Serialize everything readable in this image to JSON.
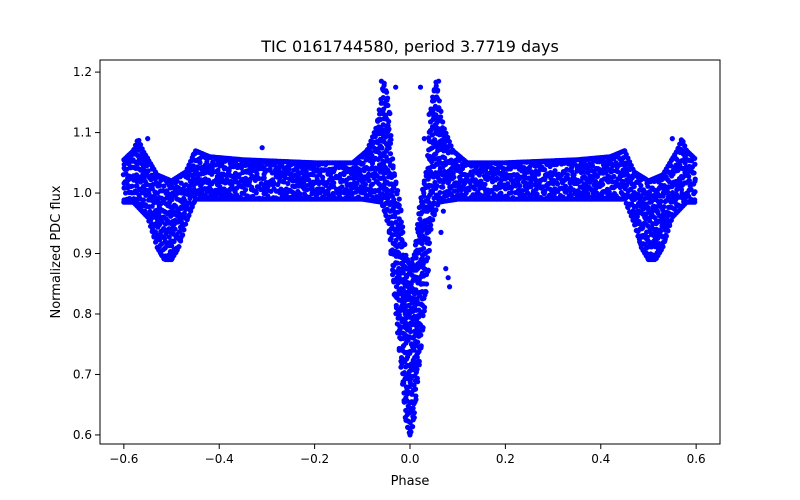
{
  "chart_data": {
    "type": "scatter",
    "title": "TIC 0161744580, period 3.7719 days",
    "xlabel": "Phase",
    "ylabel": "Normalized PDC flux",
    "xlim": [
      -0.65,
      0.65
    ],
    "ylim": [
      0.585,
      1.22
    ],
    "x_ticks": [
      -0.6,
      -0.4,
      -0.2,
      0.0,
      0.2,
      0.4,
      0.6
    ],
    "x_tick_labels": [
      "−0.6",
      "−0.4",
      "−0.2",
      "0.0",
      "0.2",
      "0.4",
      "0.6"
    ],
    "y_ticks": [
      0.6,
      0.7,
      0.8,
      0.9,
      1.0,
      1.1,
      1.2
    ],
    "y_tick_labels": [
      "0.6",
      "0.7",
      "0.8",
      "0.9",
      "1.0",
      "1.1",
      "1.2"
    ],
    "grid": false,
    "marker_color": "#0000ff",
    "series": [
      {
        "band_lower": [
          [
            -0.6,
            0.985
          ],
          [
            -0.58,
            0.985
          ],
          [
            -0.55,
            0.96
          ],
          [
            -0.53,
            0.91
          ],
          [
            -0.515,
            0.89
          ],
          [
            -0.5,
            0.89
          ],
          [
            -0.485,
            0.91
          ],
          [
            -0.47,
            0.95
          ],
          [
            -0.45,
            0.99
          ],
          [
            -0.43,
            0.99
          ],
          [
            -0.3,
            0.99
          ],
          [
            -0.1,
            0.99
          ],
          [
            -0.06,
            0.985
          ],
          [
            -0.045,
            0.95
          ],
          [
            -0.035,
            0.85
          ],
          [
            -0.025,
            0.76
          ],
          [
            -0.015,
            0.68
          ],
          [
            -0.008,
            0.62
          ],
          [
            0.0,
            0.6
          ],
          [
            0.008,
            0.62
          ],
          [
            0.015,
            0.68
          ],
          [
            0.025,
            0.76
          ],
          [
            0.035,
            0.85
          ],
          [
            0.045,
            0.95
          ],
          [
            0.06,
            0.985
          ],
          [
            0.1,
            0.99
          ],
          [
            0.3,
            0.99
          ],
          [
            0.43,
            0.99
          ],
          [
            0.45,
            0.99
          ],
          [
            0.47,
            0.95
          ],
          [
            0.485,
            0.91
          ],
          [
            0.5,
            0.89
          ],
          [
            0.515,
            0.89
          ],
          [
            0.53,
            0.91
          ],
          [
            0.55,
            0.96
          ],
          [
            0.58,
            0.985
          ],
          [
            0.6,
            0.985
          ]
        ],
        "band_upper": [
          [
            -0.6,
            1.055
          ],
          [
            -0.58,
            1.07
          ],
          [
            -0.57,
            1.09
          ],
          [
            -0.56,
            1.07
          ],
          [
            -0.53,
            1.03
          ],
          [
            -0.5,
            1.02
          ],
          [
            -0.47,
            1.035
          ],
          [
            -0.45,
            1.07
          ],
          [
            -0.42,
            1.06
          ],
          [
            -0.35,
            1.055
          ],
          [
            -0.2,
            1.05
          ],
          [
            -0.12,
            1.05
          ],
          [
            -0.09,
            1.07
          ],
          [
            -0.07,
            1.11
          ],
          [
            -0.055,
            1.185
          ],
          [
            -0.045,
            1.15
          ],
          [
            -0.035,
            1.04
          ],
          [
            -0.02,
            0.98
          ],
          [
            -0.01,
            0.9
          ],
          [
            0.0,
            0.88
          ],
          [
            0.01,
            0.9
          ],
          [
            0.02,
            0.98
          ],
          [
            0.035,
            1.04
          ],
          [
            0.045,
            1.15
          ],
          [
            0.055,
            1.185
          ],
          [
            0.07,
            1.11
          ],
          [
            0.09,
            1.07
          ],
          [
            0.12,
            1.05
          ],
          [
            0.2,
            1.05
          ],
          [
            0.35,
            1.055
          ],
          [
            0.42,
            1.06
          ],
          [
            0.45,
            1.07
          ],
          [
            0.47,
            1.035
          ],
          [
            0.5,
            1.02
          ],
          [
            0.53,
            1.03
          ],
          [
            0.56,
            1.07
          ],
          [
            0.57,
            1.09
          ],
          [
            0.58,
            1.07
          ],
          [
            0.6,
            1.055
          ]
        ],
        "points": [
          [
            -0.31,
            1.075
          ],
          [
            -0.03,
            1.175
          ],
          [
            0.022,
            1.175
          ],
          [
            0.07,
            0.97
          ],
          [
            0.065,
            0.935
          ],
          [
            0.075,
            0.875
          ],
          [
            0.08,
            0.86
          ],
          [
            0.083,
            0.845
          ],
          [
            -0.015,
            0.875
          ],
          [
            -0.012,
            0.82
          ],
          [
            -0.01,
            0.8
          ],
          [
            0.03,
            1.09
          ],
          [
            0.04,
            1.13
          ],
          [
            -0.06,
            1.185
          ],
          [
            0.06,
            1.185
          ],
          [
            -0.55,
            1.09
          ],
          [
            0.55,
            1.09
          ],
          [
            -0.5,
            0.89
          ],
          [
            0.5,
            0.89
          ],
          [
            0.0,
            0.6
          ]
        ]
      }
    ]
  }
}
